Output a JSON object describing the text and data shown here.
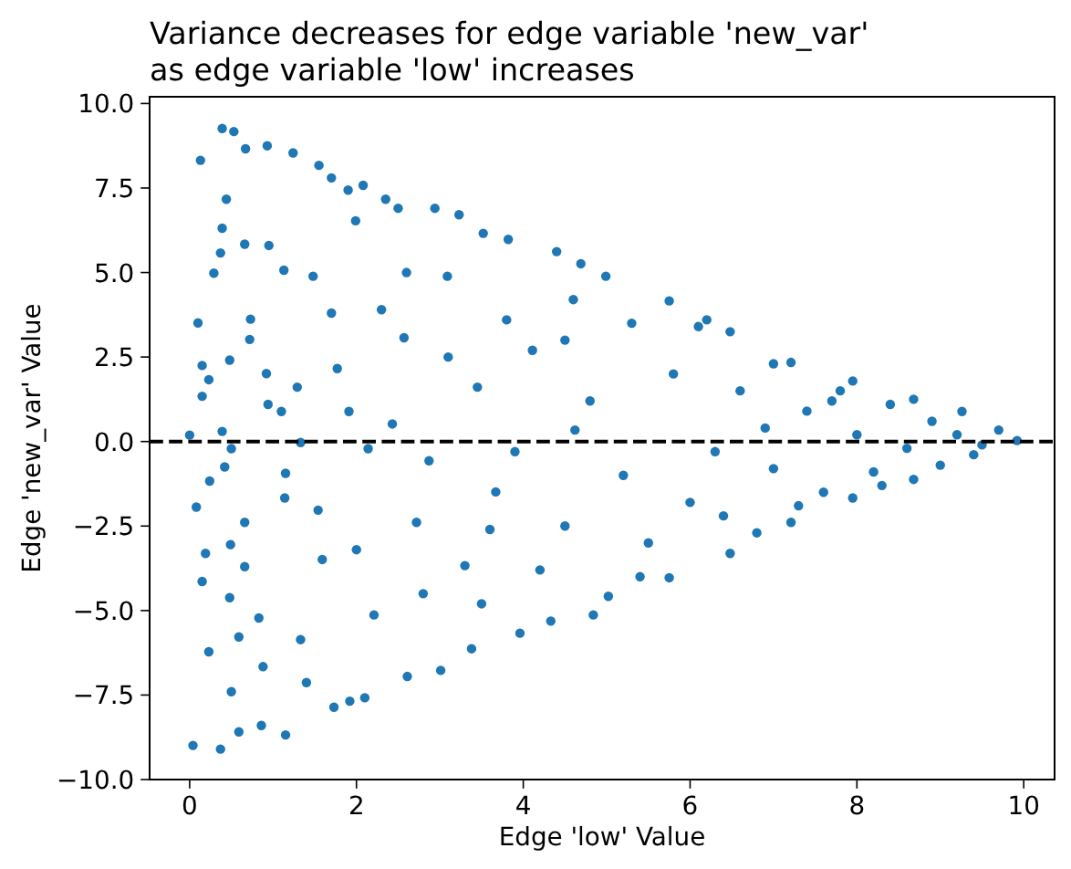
{
  "chart_data": {
    "type": "scatter",
    "title": "Variance decreases for edge variable 'new_var'\nas edge variable 'low' increases",
    "xlabel": "Edge 'low' Value",
    "ylabel": "Edge 'new_var' Value",
    "series": [
      {
        "color": "#1f77b4",
        "x": [
          0.39,
          0.53,
          0.13,
          0.0,
          0.04,
          0.37,
          0.1,
          0.15,
          0.15,
          0.23,
          0.08,
          0.24,
          0.19,
          0.15,
          0.23,
          0.29,
          0.37,
          0.44,
          0.39,
          0.48,
          0.39,
          0.42,
          0.5,
          0.49,
          0.48,
          0.5,
          0.59,
          0.67,
          0.93,
          0.66,
          0.73,
          0.72,
          0.66,
          0.66,
          0.59,
          0.86,
          0.83,
          0.88,
          0.92,
          0.94,
          0.95,
          1.15,
          1.13,
          1.24,
          1.15,
          1.14,
          1.1,
          1.29,
          1.33,
          1.33,
          1.4,
          1.55,
          1.7,
          1.48,
          1.7,
          1.54,
          1.59,
          1.73,
          1.92,
          1.9,
          1.77,
          1.91,
          1.99,
          2.1,
          2.14,
          2.08,
          2.21,
          2.35,
          2.43,
          2.5,
          2.57,
          2.61,
          2.72,
          2.87,
          2.94,
          3.01,
          3.09,
          3.23,
          3.38,
          3.52,
          3.45,
          3.3,
          3.82,
          3.96,
          3.67,
          4.11,
          4.33,
          4.4,
          4.69,
          4.84,
          4.62,
          4.99,
          2.3,
          2.0,
          2.8,
          3.1,
          3.6,
          3.8,
          3.5,
          2.6,
          3.9,
          5.75,
          6.48,
          7.21,
          7.95,
          8.68,
          9.26,
          9.7,
          9.92,
          5.02,
          5.75,
          6.48,
          7.21,
          7.95,
          8.68,
          9.4,
          4.5,
          4.5,
          4.8,
          5.2,
          5.3,
          5.5,
          5.8,
          6.0,
          6.2,
          6.3,
          6.6,
          6.8,
          7.0,
          7.0,
          7.4,
          7.6,
          7.8,
          8.0,
          8.2,
          8.4,
          8.6,
          8.9,
          9.0,
          9.2,
          9.5,
          4.2,
          4.6,
          5.4,
          6.1,
          6.4,
          6.9,
          7.3,
          7.7,
          8.3
        ],
        "values": [
          9.26,
          9.17,
          8.32,
          0.19,
          -8.99,
          -9.1,
          3.51,
          2.25,
          1.34,
          1.83,
          -1.94,
          -1.17,
          -3.31,
          -4.14,
          -6.22,
          4.98,
          5.58,
          7.17,
          6.31,
          2.41,
          0.3,
          -0.75,
          -0.21,
          -3.05,
          -4.62,
          -7.4,
          -8.59,
          8.66,
          8.75,
          5.84,
          3.62,
          3.02,
          -2.39,
          -3.7,
          -5.78,
          -8.4,
          -5.22,
          -6.66,
          2.01,
          1.1,
          5.8,
          -8.68,
          5.07,
          8.54,
          -0.94,
          -1.67,
          0.89,
          1.61,
          -0.03,
          -5.86,
          -7.13,
          8.17,
          7.8,
          4.89,
          3.8,
          -2.03,
          -3.49,
          -7.86,
          -7.68,
          7.44,
          2.16,
          0.89,
          6.53,
          -7.58,
          -0.21,
          7.58,
          -5.13,
          7.17,
          0.52,
          6.9,
          3.07,
          -6.95,
          -2.39,
          -0.57,
          6.9,
          -6.77,
          4.89,
          6.71,
          -6.13,
          6.16,
          1.61,
          -3.67,
          5.98,
          -5.67,
          -1.49,
          2.7,
          -5.31,
          5.62,
          5.26,
          -5.13,
          0.34,
          4.89,
          3.9,
          -3.2,
          -4.5,
          2.5,
          -2.6,
          3.6,
          -4.8,
          5.0,
          -0.3,
          4.16,
          3.25,
          2.34,
          1.79,
          1.25,
          0.89,
          0.34,
          0.03,
          -4.58,
          -4.03,
          -3.31,
          -2.39,
          -1.67,
          -1.12,
          -0.39,
          3.0,
          -2.5,
          1.2,
          -1.0,
          3.5,
          -3.0,
          2.0,
          -1.8,
          3.6,
          -0.3,
          1.5,
          -2.7,
          2.3,
          -0.8,
          0.9,
          -1.5,
          1.5,
          0.2,
          -0.9,
          1.1,
          -0.2,
          0.6,
          -0.7,
          0.2,
          -0.1,
          -3.8,
          4.2,
          -4.0,
          3.4,
          -2.2,
          0.4,
          -1.9,
          1.2,
          -1.3
        ]
      }
    ],
    "marker": "circle",
    "xlim": [
      -0.48,
      10.37
    ],
    "ylim": [
      -10.0,
      10.2
    ],
    "xticks": [
      0,
      2,
      4,
      6,
      8,
      10
    ],
    "yticks": [
      {
        "value": -10,
        "label": "−10.0"
      },
      {
        "value": -7.5,
        "label": "−7.5"
      },
      {
        "value": -5,
        "label": "−5.0"
      },
      {
        "value": -2.5,
        "label": "−2.5"
      },
      {
        "value": 0,
        "label": "0.0"
      },
      {
        "value": 2.5,
        "label": "2.5"
      },
      {
        "value": 5,
        "label": "5.0"
      },
      {
        "value": 7.5,
        "label": "7.5"
      },
      {
        "value": 10,
        "label": "10.0"
      }
    ],
    "ref_lines": [
      {
        "axis": "y",
        "value": 0,
        "color": "#000000",
        "line_style": "dashed"
      }
    ]
  }
}
